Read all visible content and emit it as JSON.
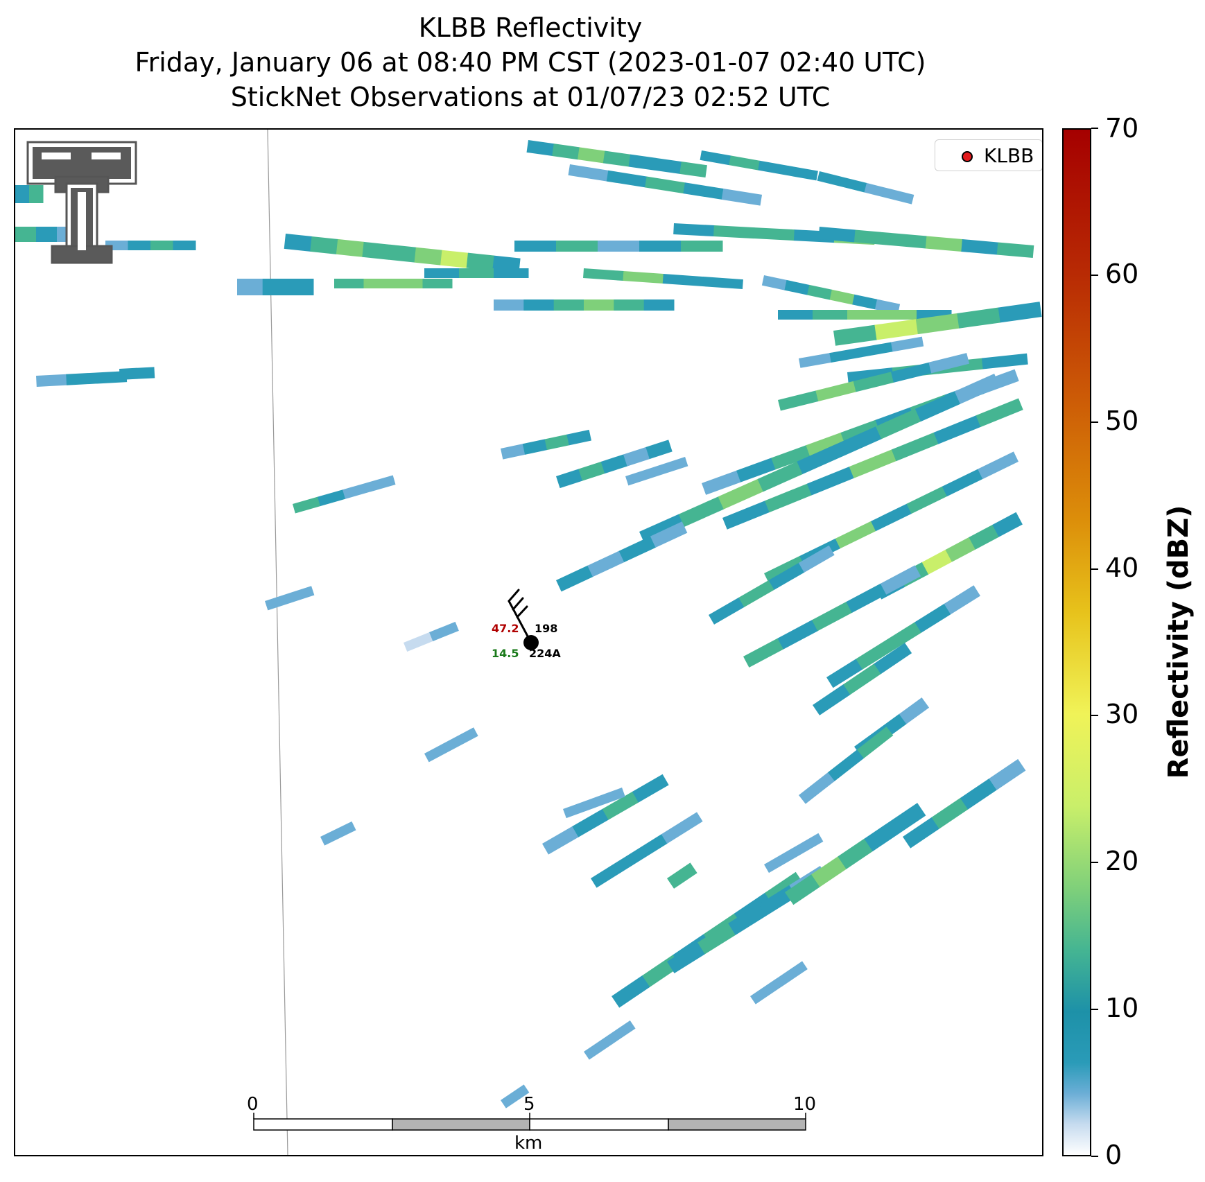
{
  "title": {
    "line1": "KLBB Reflectivity",
    "line2": "Friday, January 06 at 08:40 PM CST (2023-01-07 02:40 UTC)",
    "line3": "StickNet Observations at 01/07/23 02:52 UTC"
  },
  "legend": {
    "label": "KLBB",
    "marker_color": "#e31a1c"
  },
  "colorbar": {
    "label": "Reflectivity (dBZ)",
    "ticks": [
      "0",
      "10",
      "20",
      "30",
      "40",
      "50",
      "60",
      "70"
    ],
    "range": [
      0,
      70
    ]
  },
  "scalebar": {
    "ticks": [
      "0",
      "5",
      "10"
    ],
    "unit": "km"
  },
  "station": {
    "temperature": "47.2",
    "dewpoint": "14.5",
    "pressure": "198",
    "id": "224A",
    "temperature_color": "#b00000",
    "dewpoint_color": "#1a7a1a"
  },
  "logo": {
    "icon": "texas-tech-double-t-logo"
  },
  "colors": {
    "light_blue": "#c6dbef",
    "mid_blue": "#6baed6",
    "teal": "#2a9bb8",
    "green_teal": "#45b592",
    "green": "#7fd07a",
    "yellow_green": "#c9ef6a"
  }
}
